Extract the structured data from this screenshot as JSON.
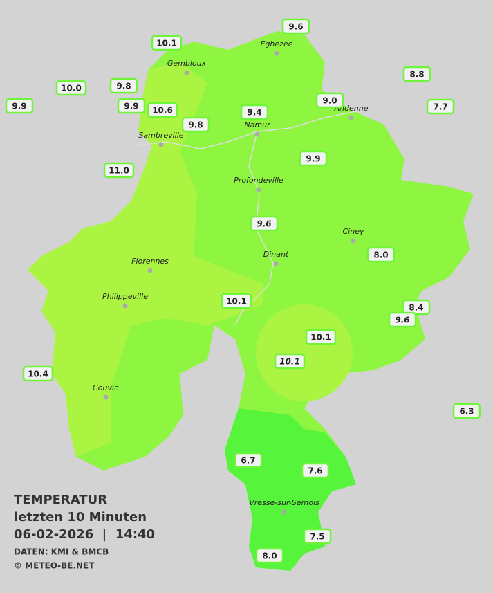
{
  "title": "TEMPERATUR",
  "subtitle": "letzten 10 Minuten",
  "datetime": "06-02-2026  |  14:40",
  "source": "DATEN: KMI & BMCB",
  "copyright": "© METEO-BE.NET",
  "cities": [
    "Eghezee",
    "Gembloux",
    "Andenne",
    "Namur",
    "Sambreville",
    "Profondeville",
    "Ciney",
    "Dinant",
    "Florennes",
    "Philippeville",
    "Couvin",
    "Vresse-sur-Semois"
  ],
  "stations": [
    {
      "label": "9.6"
    },
    {
      "label": "10.1"
    },
    {
      "label": "8.8"
    },
    {
      "label": "10.0"
    },
    {
      "label": "9.8"
    },
    {
      "label": "9.9"
    },
    {
      "label": "9.9"
    },
    {
      "label": "10.6"
    },
    {
      "label": "9.8"
    },
    {
      "label": "9.4"
    },
    {
      "label": "9.0"
    },
    {
      "label": "7.7"
    },
    {
      "label": "11.0"
    },
    {
      "label": "9.9"
    },
    {
      "label": "9.6",
      "italic": true
    },
    {
      "label": "8.0"
    },
    {
      "label": "10.1"
    },
    {
      "label": "8.4"
    },
    {
      "label": "9.6",
      "italic": true
    },
    {
      "label": "10.1"
    },
    {
      "label": "10.1",
      "italic": true
    },
    {
      "label": "10.4"
    },
    {
      "label": "6.3"
    },
    {
      "label": "6.7"
    },
    {
      "label": "7.6"
    },
    {
      "label": "7.5"
    },
    {
      "label": "8.0"
    }
  ]
}
